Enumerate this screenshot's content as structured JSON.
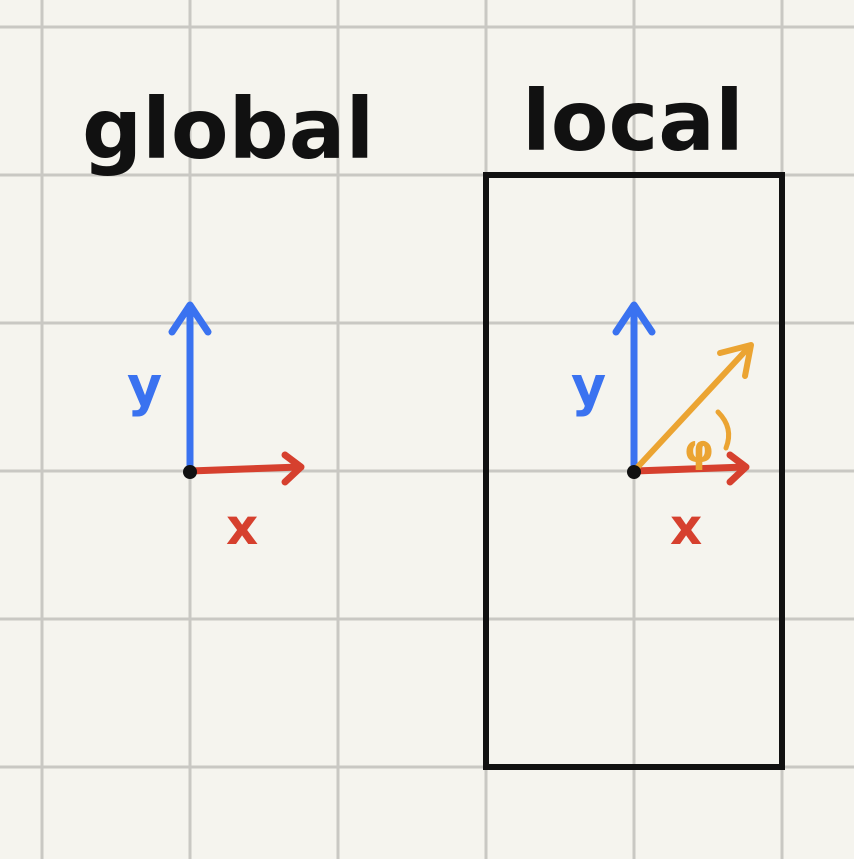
{
  "colors": {
    "paper": "#f5f4ee",
    "grid": "#c9c8c3",
    "ink": "#111111",
    "y_axis": "#3a72f0",
    "x_axis": "#d6402e",
    "vector": "#eba432"
  },
  "global_frame": {
    "title": "global",
    "y_label": "y",
    "x_label": "x"
  },
  "local_frame": {
    "title": "local",
    "y_label": "y",
    "x_label": "x",
    "angle_label": "φ"
  }
}
